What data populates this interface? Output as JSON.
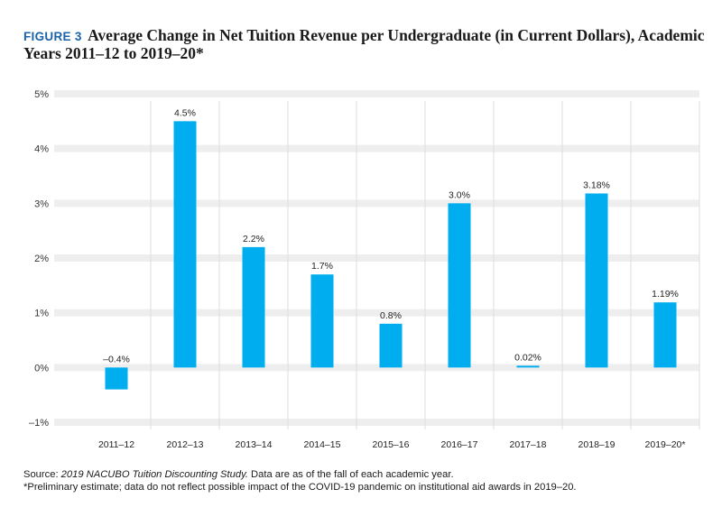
{
  "header": {
    "figure_label": "FIGURE 3",
    "title": "Average Change in Net Tuition Revenue per Undergraduate (in Current Dollars), Academic Years 2011–12 to 2019–20*"
  },
  "chart_data": {
    "type": "bar",
    "title": "Average Change in Net Tuition Revenue per Undergraduate (in Current Dollars), Academic Years 2011–12 to 2019–20*",
    "categories": [
      "2011–12",
      "2012–13",
      "2013–14",
      "2014–15",
      "2015–16",
      "2016–17",
      "2017–18",
      "2018–19",
      "2019–20*"
    ],
    "values": [
      -0.4,
      4.5,
      2.2,
      1.7,
      0.8,
      3.0,
      0.02,
      3.18,
      1.19
    ],
    "data_labels": [
      "–0.4%",
      "4.5%",
      "2.2%",
      "1.7%",
      "0.8%",
      "3.0%",
      "0.02%",
      "3.18%",
      "1.19%"
    ],
    "yticks": [
      5,
      4,
      3,
      2,
      1,
      0,
      -1
    ],
    "ytick_labels": [
      "5%",
      "4%",
      "3%",
      "2%",
      "1%",
      "0%",
      "–1%"
    ],
    "ylim": [
      -1,
      5
    ],
    "xlabel": "",
    "ylabel": "",
    "grid": true,
    "bar_color": "#00aeef",
    "grid_color": "#eeeeee"
  },
  "footer": {
    "source_prefix": "Source: ",
    "source_title": "2019 NACUBO Tuition Discounting Study.",
    "source_suffix": " Data are as of the fall of each academic year.",
    "note": "*Preliminary estimate; data do not reflect possible impact of the COVID-19 pandemic on institutional aid awards in 2019–20."
  }
}
